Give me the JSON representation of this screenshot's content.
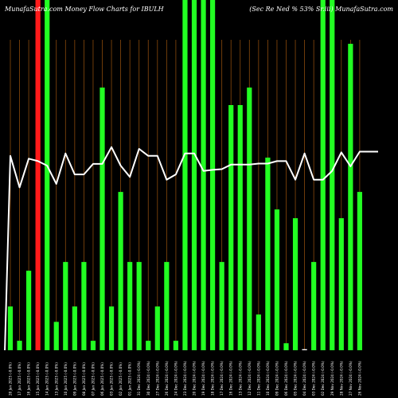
{
  "chart_data": {
    "type": "bar",
    "title": "MunafaSutra.com Money Flow Charts for IBULH",
    "title_right": "(Sec Re Ned % 53% Sr.iii) MunafaSutra.com",
    "background": "#000000",
    "colors": {
      "up": "#22ff22",
      "down": "#ff1a1a",
      "flat": "#ffffff",
      "grid": "#8a4a0c",
      "line": "#ffffff"
    },
    "ylim": [
      0,
      100
    ],
    "bars": [
      {
        "label": "20 Jan 2025 (-0.0%)",
        "value": 12.5,
        "color": "up"
      },
      {
        "label": "17 Jan 2025 (-0.0%)",
        "value": 2.7,
        "color": "up"
      },
      {
        "label": "16 Jan 2025 (-0.0%)",
        "value": 22.7,
        "color": "up"
      },
      {
        "label": "15 Jan 2025 (-0.0%)",
        "value": 100,
        "color": "down"
      },
      {
        "label": "14 Jan 2025 (-0.0%)",
        "value": 100,
        "color": "up"
      },
      {
        "label": "13 Jan 2025 (-0.0%)",
        "value": 8.1,
        "color": "up"
      },
      {
        "label": "10 Jan 2025 (-0.0%)",
        "value": 25.2,
        "color": "up"
      },
      {
        "label": "09 Jan 2025 (-0.0%)",
        "value": 12.5,
        "color": "up"
      },
      {
        "label": "08 Jan 2025 (-0.0%)",
        "value": 25.2,
        "color": "up"
      },
      {
        "label": "07 Jan 2025 (-0.0%)",
        "value": 2.7,
        "color": "up"
      },
      {
        "label": "06 Jan 2025 (-0.0%)",
        "value": 75.0,
        "color": "up"
      },
      {
        "label": "03 Jan 2025 (-0.0%)",
        "value": 12.5,
        "color": "up"
      },
      {
        "label": "02 Jan 2025 (-0.0%)",
        "value": 45.2,
        "color": "up"
      },
      {
        "label": "01 Jan 2025 (-0.0%)",
        "value": 25.2,
        "color": "up"
      },
      {
        "label": "31 Dec 2024 (-0.0%)",
        "value": 25.2,
        "color": "up"
      },
      {
        "label": "30 Dec 2024 (-0.0%)",
        "value": 2.7,
        "color": "up"
      },
      {
        "label": "27 Dec 2024 (-0.0%)",
        "value": 12.5,
        "color": "up"
      },
      {
        "label": "26 Dec 2024 (-0.0%)",
        "value": 25.2,
        "color": "up"
      },
      {
        "label": "24 Dec 2024 (-0.0%)",
        "value": 2.7,
        "color": "up"
      },
      {
        "label": "23 Dec 2024 (-0.0%)",
        "value": 100,
        "color": "up"
      },
      {
        "label": "20 Dec 2024 (-0.0%)",
        "value": 100,
        "color": "up"
      },
      {
        "label": "19 Dec 2024 (-0.0%)",
        "value": 100,
        "color": "up"
      },
      {
        "label": "18 Dec 2024 (-0.0%)",
        "value": 100,
        "color": "up"
      },
      {
        "label": "17 Dec 2024 (-0.0%)",
        "value": 25.2,
        "color": "up"
      },
      {
        "label": "16 Dec 2024 (-0.0%)",
        "value": 70.0,
        "color": "up"
      },
      {
        "label": "13 Dec 2024 (-0.0%)",
        "value": 70.0,
        "color": "up"
      },
      {
        "label": "12 Dec 2024 (-0.0%)",
        "value": 75.0,
        "color": "up"
      },
      {
        "label": "11 Dec 2024 (-0.0%)",
        "value": 10.2,
        "color": "up"
      },
      {
        "label": "10 Dec 2024 (-0.0%)",
        "value": 55.0,
        "color": "up"
      },
      {
        "label": "09 Dec 2024 (-0.0%)",
        "value": 40.2,
        "color": "up"
      },
      {
        "label": "06 Dec 2024 (-0.0%)",
        "value": 2.0,
        "color": "up"
      },
      {
        "label": "05 Dec 2024 (-0.0%)",
        "value": 37.7,
        "color": "up"
      },
      {
        "label": "04 Dec 2024 (-0.0%)",
        "value": 0.3,
        "color": "flat"
      },
      {
        "label": "03 Dec 2024 (-0.0%)",
        "value": 25.2,
        "color": "up"
      },
      {
        "label": "02 Dec 2024 (-0.0%)",
        "value": 100,
        "color": "up"
      },
      {
        "label": "29 Nov 2024 (-0.0%)",
        "value": 100,
        "color": "up"
      },
      {
        "label": "28 Nov 2024 (-0.0%)",
        "value": 37.7,
        "color": "up"
      },
      {
        "label": "27 Nov 2024 (-0.0%)",
        "value": 87.5,
        "color": "up"
      },
      {
        "label": "26 Nov 2024 (-0.0%)",
        "value": 45.2,
        "color": "up"
      }
    ],
    "line_points": [
      {
        "x_index": -0.6,
        "value": 0
      },
      {
        "x_index": 0,
        "value": 55.5
      },
      {
        "x_index": 1,
        "value": 46.5
      },
      {
        "x_index": 2,
        "value": 54.7
      },
      {
        "x_index": 3,
        "value": 54.0
      },
      {
        "x_index": 4,
        "value": 52.7
      },
      {
        "x_index": 5,
        "value": 47.5
      },
      {
        "x_index": 6,
        "value": 56.2
      },
      {
        "x_index": 7,
        "value": 50.2
      },
      {
        "x_index": 8,
        "value": 50.2
      },
      {
        "x_index": 9,
        "value": 53.2
      },
      {
        "x_index": 10,
        "value": 53.2
      },
      {
        "x_index": 11,
        "value": 58.0
      },
      {
        "x_index": 12,
        "value": 52.7
      },
      {
        "x_index": 13,
        "value": 49.5
      },
      {
        "x_index": 14,
        "value": 57.5
      },
      {
        "x_index": 15,
        "value": 55.5
      },
      {
        "x_index": 16,
        "value": 55.5
      },
      {
        "x_index": 17,
        "value": 48.7
      },
      {
        "x_index": 18,
        "value": 50.2
      },
      {
        "x_index": 19,
        "value": 56.2
      },
      {
        "x_index": 20,
        "value": 56.2
      },
      {
        "x_index": 21,
        "value": 51.2
      },
      {
        "x_index": 22,
        "value": 51.5
      },
      {
        "x_index": 23,
        "value": 51.7
      },
      {
        "x_index": 24,
        "value": 53.0
      },
      {
        "x_index": 25,
        "value": 53.0
      },
      {
        "x_index": 26,
        "value": 53.0
      },
      {
        "x_index": 27,
        "value": 53.3
      },
      {
        "x_index": 28,
        "value": 53.3
      },
      {
        "x_index": 29,
        "value": 54.0
      },
      {
        "x_index": 30,
        "value": 54.0
      },
      {
        "x_index": 31,
        "value": 48.7
      },
      {
        "x_index": 32,
        "value": 56.2
      },
      {
        "x_index": 33,
        "value": 48.7
      },
      {
        "x_index": 34,
        "value": 48.7
      },
      {
        "x_index": 35,
        "value": 51.2
      },
      {
        "x_index": 36,
        "value": 56.5
      },
      {
        "x_index": 37,
        "value": 52.5
      },
      {
        "x_index": 38,
        "value": 56.7
      },
      {
        "x_index": 39,
        "value": 56.7
      },
      {
        "x_index": 40,
        "value": 56.7
      }
    ]
  }
}
